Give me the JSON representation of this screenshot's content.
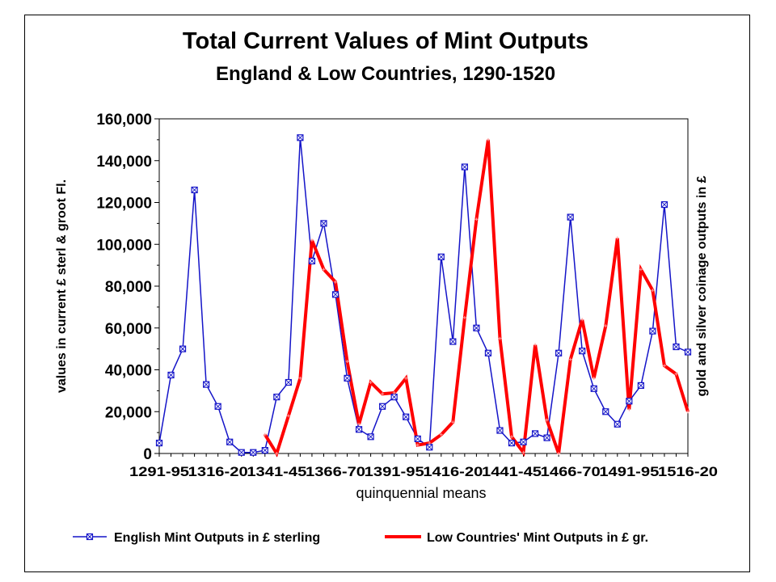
{
  "chart_data": {
    "type": "line",
    "title": "Total Current Values of Mint Outputs",
    "subtitle": "England & Low Countries, 1290-1520",
    "xlabel": "quinquennial means",
    "ylabel": "values in current £ sterl & groot Fl.",
    "ylabel_right": "gold and silver coinage outputs in £",
    "ylim": [
      0,
      160000
    ],
    "yticks": [
      "0",
      "20,000",
      "40,000",
      "60,000",
      "80,000",
      "100,000",
      "120,000",
      "140,000",
      "160,000"
    ],
    "xtick_labels": [
      "1291-95",
      "1316-20",
      "1341-45",
      "1366-70",
      "1391-95",
      "1416-20",
      "1441-45",
      "1466-70",
      "1491-95",
      "1516-20"
    ],
    "x_count": 46,
    "grid": false,
    "legend_position": "bottom",
    "series": [
      {
        "name": "English Mint Outputs in £ sterling",
        "color": "#1414c8",
        "marker": "square-x",
        "start_index": 0,
        "values": [
          5000,
          37500,
          50000,
          126000,
          33000,
          22500,
          5500,
          500,
          500,
          1500,
          27000,
          34000,
          151000,
          92000,
          110000,
          76000,
          36000,
          11500,
          8000,
          22500,
          27000,
          17500,
          7000,
          3000,
          94000,
          53500,
          137000,
          60000,
          48000,
          11000,
          5000,
          5500,
          9500,
          7500,
          48000,
          113000,
          49000,
          31000,
          20000,
          14000,
          25000,
          32500,
          58500,
          119000,
          51000,
          48500
        ]
      },
      {
        "name": "Low Countries' Mint Outputs in £ gr.",
        "color": "#ff0000",
        "marker": "none",
        "start_index": 9,
        "values": [
          9000,
          0,
          18000,
          36000,
          102000,
          88000,
          82000,
          44000,
          14000,
          34000,
          28500,
          29000,
          36000,
          4000,
          5000,
          9000,
          15000,
          65000,
          112000,
          150000,
          55000,
          8000,
          500,
          52000,
          16000,
          0,
          45000,
          64000,
          36000,
          61000,
          103000,
          21000,
          88000,
          78000,
          42000,
          38000,
          20000
        ]
      }
    ]
  }
}
